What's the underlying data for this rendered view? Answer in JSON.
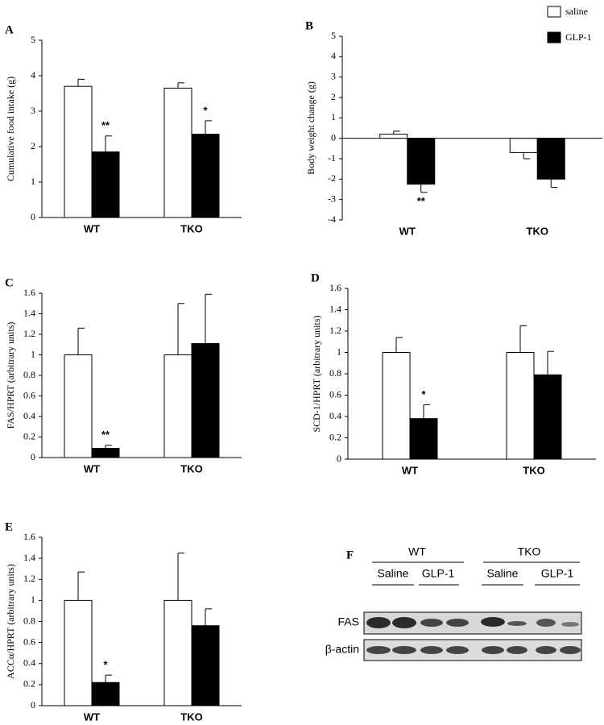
{
  "chart_data": [
    {
      "type": "bar",
      "panel": "A",
      "ylabel": "Cumulative food intake (g)",
      "categories": [
        "WT",
        "TKO"
      ],
      "ylim": [
        0,
        5
      ],
      "yticks": [
        0,
        1,
        2,
        3,
        4,
        5
      ],
      "series": [
        {
          "color": "#ffffff",
          "values": [
            3.7,
            3.65
          ],
          "errors": [
            0.2,
            0.15
          ]
        },
        {
          "color": "#000000",
          "values": [
            1.85,
            2.35
          ],
          "errors": [
            0.45,
            0.38
          ],
          "significance": [
            "**",
            "*"
          ]
        }
      ]
    },
    {
      "type": "bar",
      "panel": "B",
      "ylabel": "Body weight change (g)",
      "categories": [
        "WT",
        "TKO"
      ],
      "ylim": [
        -4,
        5
      ],
      "yticks": [
        -4,
        -3,
        -2,
        -1,
        0,
        1,
        2,
        3,
        4,
        5
      ],
      "series": [
        {
          "name": "saline",
          "color": "#ffffff",
          "values": [
            0.2,
            -0.7
          ],
          "errors": [
            0.15,
            0.3
          ]
        },
        {
          "name": "GLP-1",
          "color": "#000000",
          "values": [
            -2.25,
            -2.0
          ],
          "errors": [
            0.4,
            0.4
          ],
          "significance": [
            "**",
            null
          ]
        }
      ]
    },
    {
      "type": "bar",
      "panel": "C",
      "ylabel": "FAS/HPRT (arbitrary units)",
      "categories": [
        "WT",
        "TKO"
      ],
      "ylim": [
        0,
        1.6
      ],
      "yticks": [
        0,
        0.2,
        0.4,
        0.6,
        0.8,
        1,
        1.2,
        1.4,
        1.6
      ],
      "series": [
        {
          "color": "#ffffff",
          "values": [
            1,
            1
          ],
          "errors": [
            0.26,
            0.5
          ]
        },
        {
          "color": "#000000",
          "values": [
            0.09,
            1.11
          ],
          "errors": [
            0.03,
            0.48
          ],
          "significance": [
            "**",
            null
          ]
        }
      ]
    },
    {
      "type": "bar",
      "panel": "D",
      "ylabel": "SCD-1/HPRT (arbitrary units)",
      "categories": [
        "WT",
        "TKO"
      ],
      "ylim": [
        0,
        1.6
      ],
      "yticks": [
        0,
        0.2,
        0.4,
        0.6,
        0.8,
        1,
        1.2,
        1.4,
        1.6
      ],
      "series": [
        {
          "color": "#ffffff",
          "values": [
            1,
            1
          ],
          "errors": [
            0.14,
            0.25
          ]
        },
        {
          "color": "#000000",
          "values": [
            0.38,
            0.79
          ],
          "errors": [
            0.13,
            0.22
          ],
          "significance": [
            "*",
            null
          ]
        }
      ]
    },
    {
      "type": "bar",
      "panel": "E",
      "ylabel": "ACCα/HPRT (arbitrary units)",
      "categories": [
        "WT",
        "TKO"
      ],
      "ylim": [
        0,
        1.6
      ],
      "yticks": [
        0,
        0.2,
        0.4,
        0.6,
        0.8,
        1,
        1.2,
        1.4,
        1.6
      ],
      "series": [
        {
          "color": "#ffffff",
          "values": [
            1,
            1
          ],
          "errors": [
            0.27,
            0.45
          ]
        },
        {
          "color": "#000000",
          "values": [
            0.22,
            0.76
          ],
          "errors": [
            0.07,
            0.16
          ],
          "significance": [
            "*",
            null
          ]
        }
      ]
    }
  ],
  "blot": {
    "panel": "F",
    "groups": [
      "WT",
      "TKO"
    ],
    "treatments": [
      "Saline",
      "GLP-1",
      "Saline",
      "GLP-1"
    ],
    "rows": [
      "FAS",
      "β-actin"
    ]
  }
}
